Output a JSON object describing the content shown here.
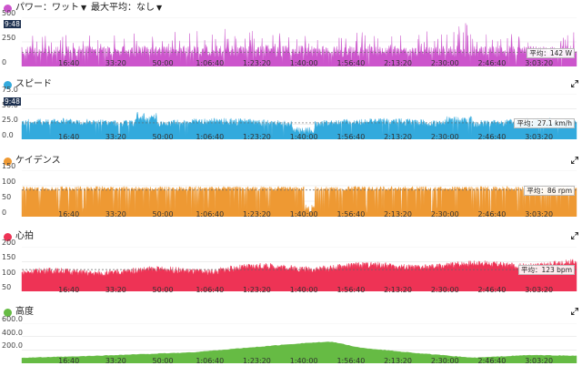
{
  "panels": [
    {
      "key": "power",
      "title": "パワー：ワット",
      "dropdown": true,
      "subtitle": "最大平均：なし",
      "subtitle_dropdown": true,
      "color": "#cc55cc",
      "y_ticks": [
        "500",
        "250",
        "0"
      ],
      "avg_label": "平均：142 W",
      "time_badge": "9:48",
      "expand": false
    },
    {
      "key": "speed",
      "title": "スピード",
      "color": "#33aadd",
      "y_ticks": "[\"75.0\",\"50.0\",\"25.0\",\"0.0\"]",
      "y_ticks_list": [
        "75.0",
        "50.0",
        "25.0",
        "0.0"
      ],
      "avg_label": "平均：27.1 km/h",
      "time_badge": "9:48",
      "expand": true
    },
    {
      "key": "cadence",
      "title": "ケイデンス",
      "color": "#ee9933",
      "y_ticks_list": [
        "150",
        "100",
        "50",
        "0"
      ],
      "avg_label": "平均：86 rpm",
      "expand": true
    },
    {
      "key": "heartrate",
      "title": "心拍",
      "color": "#ee3355",
      "y_ticks_list": [
        "200",
        "150",
        "100",
        "50"
      ],
      "avg_label": "平均：123 bpm",
      "expand": true
    },
    {
      "key": "elevation",
      "title": "高度",
      "color": "#66bb44",
      "y_ticks_list": [
        "600.0",
        "400.0",
        "200.0"
      ],
      "expand": true
    }
  ],
  "x_ticks": [
    "16:40",
    "33:20",
    "50:00",
    "1:06:40",
    "1:23:20",
    "1:40:00",
    "1:56:40",
    "2:13:20",
    "2:30:00",
    "2:46:40",
    "3:03:20"
  ],
  "icons": {
    "dropdown": "triangle-down-icon",
    "expand": "expand-arrows-icon"
  },
  "chart_data": [
    {
      "type": "area",
      "title": "パワー：ワット",
      "x_range_seconds": [
        0,
        11800
      ],
      "ylim": [
        0,
        500
      ],
      "average": 142,
      "series": [
        {
          "profile": "power"
        }
      ]
    },
    {
      "type": "area",
      "title": "スピード",
      "ylim": [
        0,
        75
      ],
      "average": 27.1,
      "series": [
        {
          "profile": "speed"
        }
      ]
    },
    {
      "type": "area",
      "title": "ケイデンス",
      "ylim": [
        0,
        150
      ],
      "average": 86,
      "series": [
        {
          "profile": "cadence"
        }
      ]
    },
    {
      "type": "area",
      "title": "心拍",
      "ylim": [
        50,
        200
      ],
      "average": 123,
      "series": [
        {
          "profile": "heartrate"
        }
      ]
    },
    {
      "type": "area",
      "title": "高度",
      "ylim": [
        0,
        600
      ],
      "series": [
        {
          "x_minutes": [
            0,
            20,
            40,
            60,
            80,
            100,
            110,
            120,
            140,
            160,
            180,
            196
          ],
          "values": [
            80,
            100,
            130,
            160,
            230,
            300,
            320,
            230,
            150,
            80,
            120,
            110
          ]
        }
      ]
    }
  ]
}
